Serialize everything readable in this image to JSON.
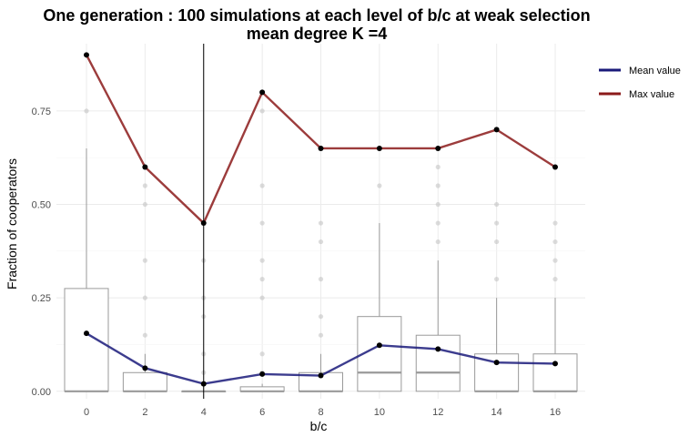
{
  "chart_data": {
    "type": "box",
    "title_line1": "One generation : 100 simulations at each level of b/c at weak selection",
    "title_line2": "mean degree K =4",
    "xlabel": "b/c",
    "ylabel": "Fraction of cooperators",
    "categories": [
      0,
      2,
      4,
      6,
      8,
      10,
      12,
      14,
      16
    ],
    "y_ticks": [
      "0.00",
      "0.25",
      "0.50",
      "0.75"
    ],
    "ylim": [
      -0.02,
      0.93
    ],
    "vline_x": 4,
    "grid": true,
    "legend_position": "right-top",
    "boxes": [
      {
        "x": 0,
        "q1": 0,
        "median": 0,
        "q3": 0.275,
        "whisker_high": 0.65
      },
      {
        "x": 2,
        "q1": 0,
        "median": 0,
        "q3": 0.05,
        "whisker_high": 0.1
      },
      {
        "x": 4,
        "q1": 0,
        "median": 0,
        "q3": 0.0,
        "whisker_high": 0.0
      },
      {
        "x": 6,
        "q1": 0,
        "median": 0,
        "q3": 0.012,
        "whisker_high": 0.02
      },
      {
        "x": 8,
        "q1": 0,
        "median": 0,
        "q3": 0.05,
        "whisker_high": 0.1
      },
      {
        "x": 10,
        "q1": 0,
        "median": 0.05,
        "q3": 0.2,
        "whisker_high": 0.45
      },
      {
        "x": 12,
        "q1": 0,
        "median": 0.05,
        "q3": 0.15,
        "whisker_high": 0.35
      },
      {
        "x": 14,
        "q1": 0,
        "median": 0,
        "q3": 0.1,
        "whisker_high": 0.25
      },
      {
        "x": 16,
        "q1": 0,
        "median": 0,
        "q3": 0.1,
        "whisker_high": 0.25
      }
    ],
    "outliers": [
      {
        "x": 0,
        "y": 0.75
      },
      {
        "x": 2,
        "y": 0.15
      },
      {
        "x": 2,
        "y": 0.25
      },
      {
        "x": 2,
        "y": 0.35
      },
      {
        "x": 2,
        "y": 0.5
      },
      {
        "x": 2,
        "y": 0.55
      },
      {
        "x": 4,
        "y": 0.05
      },
      {
        "x": 4,
        "y": 0.1
      },
      {
        "x": 4,
        "y": 0.2
      },
      {
        "x": 4,
        "y": 0.25
      },
      {
        "x": 4,
        "y": 0.35
      },
      {
        "x": 6,
        "y": 0.05
      },
      {
        "x": 6,
        "y": 0.1
      },
      {
        "x": 6,
        "y": 0.25
      },
      {
        "x": 6,
        "y": 0.3
      },
      {
        "x": 6,
        "y": 0.35
      },
      {
        "x": 6,
        "y": 0.45
      },
      {
        "x": 6,
        "y": 0.55
      },
      {
        "x": 6,
        "y": 0.75
      },
      {
        "x": 8,
        "y": 0.15
      },
      {
        "x": 8,
        "y": 0.2
      },
      {
        "x": 8,
        "y": 0.3
      },
      {
        "x": 8,
        "y": 0.4
      },
      {
        "x": 8,
        "y": 0.45
      },
      {
        "x": 10,
        "y": 0.55
      },
      {
        "x": 12,
        "y": 0.4
      },
      {
        "x": 12,
        "y": 0.45
      },
      {
        "x": 12,
        "y": 0.5
      },
      {
        "x": 12,
        "y": 0.55
      },
      {
        "x": 12,
        "y": 0.6
      },
      {
        "x": 14,
        "y": 0.3
      },
      {
        "x": 14,
        "y": 0.4
      },
      {
        "x": 14,
        "y": 0.45
      },
      {
        "x": 14,
        "y": 0.5
      },
      {
        "x": 16,
        "y": 0.3
      },
      {
        "x": 16,
        "y": 0.35
      },
      {
        "x": 16,
        "y": 0.4
      },
      {
        "x": 16,
        "y": 0.45
      }
    ],
    "series": [
      {
        "name": "Mean value",
        "color": "#1a1a7a",
        "values": [
          0.155,
          0.062,
          0.02,
          0.046,
          0.042,
          0.123,
          0.113,
          0.077,
          0.074
        ]
      },
      {
        "name": "Max value",
        "color": "#8b1a1a",
        "values": [
          0.9,
          0.6,
          0.45,
          0.8,
          0.65,
          0.65,
          0.65,
          0.7,
          0.6
        ]
      }
    ]
  }
}
